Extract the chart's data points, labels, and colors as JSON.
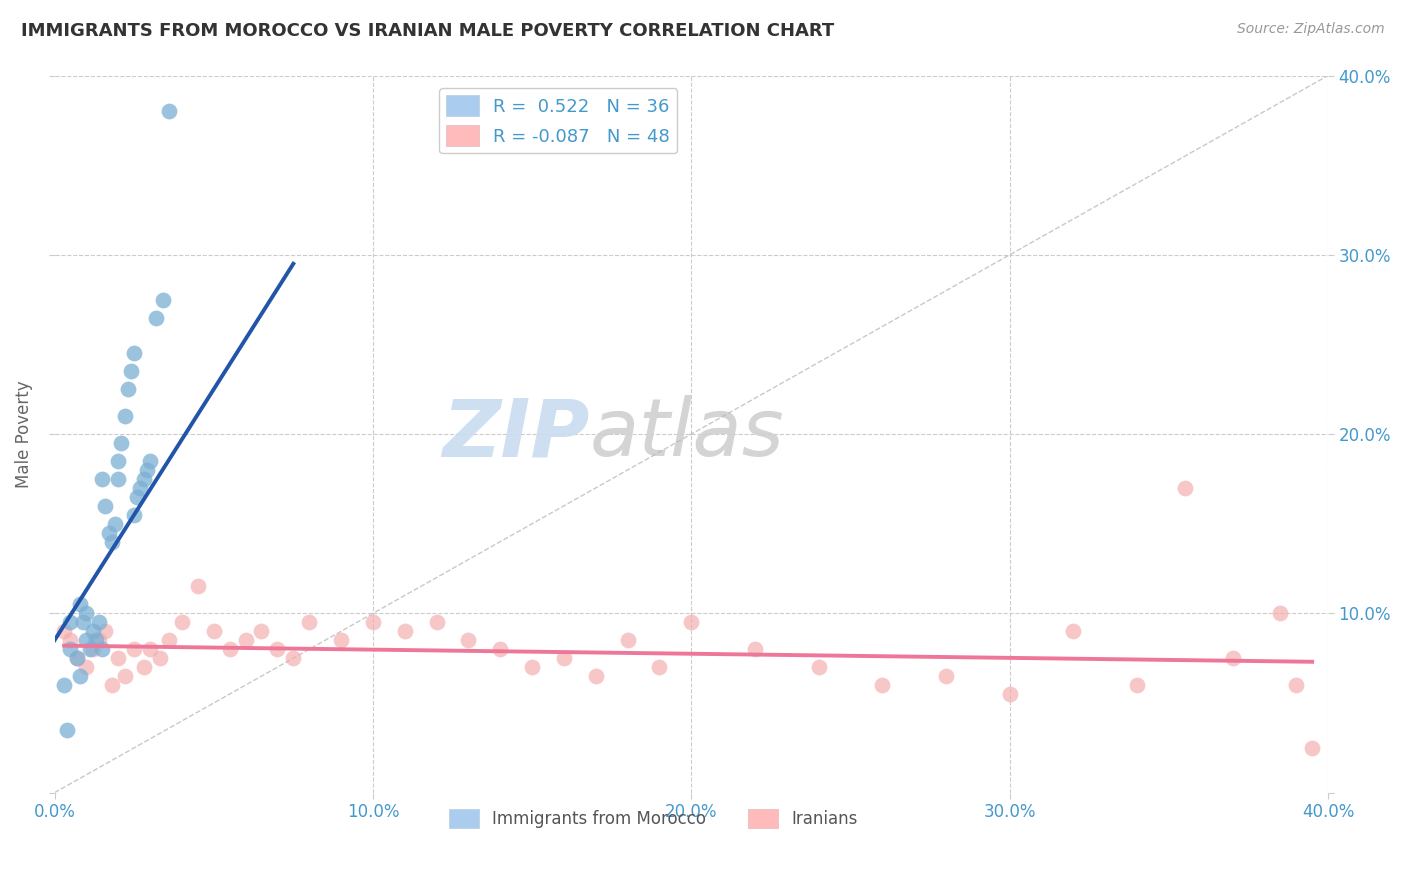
{
  "title": "IMMIGRANTS FROM MOROCCO VS IRANIAN MALE POVERTY CORRELATION CHART",
  "source": "Source: ZipAtlas.com",
  "ylabel": "Male Poverty",
  "xlim": [
    0.0,
    0.4
  ],
  "ylim": [
    0.0,
    0.4
  ],
  "x_tick_labels": [
    "0.0%",
    "10.0%",
    "20.0%",
    "30.0%",
    "40.0%"
  ],
  "x_tick_positions": [
    0.0,
    0.1,
    0.2,
    0.3,
    0.4
  ],
  "y_tick_labels_right": [
    "",
    "10.0%",
    "20.0%",
    "30.0%",
    "40.0%"
  ],
  "y_tick_positions": [
    0.0,
    0.1,
    0.2,
    0.3,
    0.4
  ],
  "blue_color": "#7BAFD4",
  "pink_color": "#F4AAAA",
  "blue_line_color": "#2255AA",
  "pink_line_color": "#EE7799",
  "grid_color": "#CCCCCC",
  "legend_label1": "Immigrants from Morocco",
  "legend_label2": "Iranians",
  "watermark_zip": "ZIP",
  "watermark_atlas": "atlas",
  "blue_scatter_x": [
    0.005,
    0.005,
    0.007,
    0.008,
    0.008,
    0.009,
    0.01,
    0.01,
    0.011,
    0.012,
    0.013,
    0.014,
    0.015,
    0.015,
    0.016,
    0.017,
    0.018,
    0.019,
    0.02,
    0.02,
    0.021,
    0.022,
    0.023,
    0.024,
    0.025,
    0.025,
    0.026,
    0.027,
    0.028,
    0.029,
    0.03,
    0.032,
    0.034,
    0.036,
    0.003,
    0.004
  ],
  "blue_scatter_y": [
    0.095,
    0.08,
    0.075,
    0.065,
    0.105,
    0.095,
    0.085,
    0.1,
    0.08,
    0.09,
    0.085,
    0.095,
    0.08,
    0.175,
    0.16,
    0.145,
    0.14,
    0.15,
    0.175,
    0.185,
    0.195,
    0.21,
    0.225,
    0.235,
    0.245,
    0.155,
    0.165,
    0.17,
    0.175,
    0.18,
    0.185,
    0.265,
    0.275,
    0.38,
    0.06,
    0.035
  ],
  "blue_trend_x": [
    0.0,
    0.075
  ],
  "blue_trend_y": [
    0.085,
    0.295
  ],
  "pink_scatter_x": [
    0.003,
    0.005,
    0.007,
    0.01,
    0.012,
    0.014,
    0.016,
    0.018,
    0.02,
    0.022,
    0.025,
    0.028,
    0.03,
    0.033,
    0.036,
    0.04,
    0.045,
    0.05,
    0.055,
    0.06,
    0.065,
    0.07,
    0.075,
    0.08,
    0.09,
    0.1,
    0.11,
    0.12,
    0.13,
    0.14,
    0.15,
    0.16,
    0.17,
    0.18,
    0.19,
    0.2,
    0.22,
    0.24,
    0.26,
    0.28,
    0.3,
    0.32,
    0.34,
    0.355,
    0.37,
    0.385,
    0.39,
    0.395
  ],
  "pink_scatter_y": [
    0.09,
    0.085,
    0.075,
    0.07,
    0.08,
    0.085,
    0.09,
    0.06,
    0.075,
    0.065,
    0.08,
    0.07,
    0.08,
    0.075,
    0.085,
    0.095,
    0.115,
    0.09,
    0.08,
    0.085,
    0.09,
    0.08,
    0.075,
    0.095,
    0.085,
    0.095,
    0.09,
    0.095,
    0.085,
    0.08,
    0.07,
    0.075,
    0.065,
    0.085,
    0.07,
    0.095,
    0.08,
    0.07,
    0.06,
    0.065,
    0.055,
    0.09,
    0.06,
    0.17,
    0.075,
    0.1,
    0.06,
    0.025
  ],
  "pink_trend_x": [
    0.003,
    0.395
  ],
  "pink_trend_y": [
    0.082,
    0.073
  ]
}
